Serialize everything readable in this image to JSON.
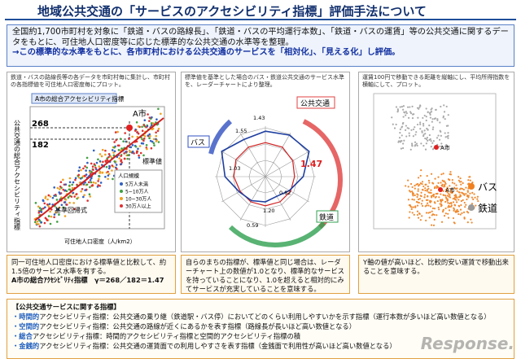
{
  "title": "地域公共交通の「サービスのアクセシビリティ指標」評価手法について",
  "intro": {
    "lines": [
      "全国約1,700市町村を対象に「鉄道・バスの路線長」、「鉄道・バスの平均運行本数」、「鉄道・バスの運賃」等の公共交通に関するデータをもとに、可住地人口密度等に応じた標準的な公共交通の水準等を整理。",
      "→この標準的な水準をもとに、各市町村における公共交通のサービスを「相対化」、「見える化」し評価。"
    ]
  },
  "panels": [
    {
      "caption": "鉄道・バスの路線長等の各データを市町村毎に集計し、市町村の各指標値を可住地人口密度毎にプロット。",
      "chart_title": "A市の総合アクセシビリティ指標",
      "y_label": "公共交通の総合アクセシビリティ指標",
      "x_label": "可住地人口密度（人/km2）",
      "value_a": "268",
      "value_std": "182",
      "city": "A市",
      "std": "標準値",
      "regression": "基準回帰式",
      "legend_title": "人口規模",
      "legend": [
        "5万人未満",
        "5~10万人",
        "10~30万人",
        "30万人以上"
      ]
    },
    {
      "caption": "標準値を基準とした場合のバス・鉄道公共交通のサービス水準を、レーダーチャートにより整理。",
      "public": "公共交通",
      "bus": "バス",
      "rail": "鉄道",
      "ratio": "1.47",
      "numbers": [
        "1.43",
        "1.55",
        "1.03",
        "0.82",
        "1.20",
        "0.59"
      ]
    },
    {
      "caption": "運賃100円で移動できる距離を縦軸にし、平均所得指数を横軸にして、プロット。",
      "city": "A市",
      "bus": "バス",
      "rail": "鉄道"
    }
  ],
  "notes": [
    {
      "lines": [
        "同一可住地人口密度における標準値と比較して、約1.5倍のサービス水準を有する。",
        "A市の総合ｱｸｾｼﾋﾞﾘﾃｨ指標　γ＝268／182＝1.47"
      ]
    },
    {
      "lines": [
        "自らのまちの指標が、標準値と同じ場合は、レーダーチャート上の数値が1.0となり、標準的なサービスを持っていることになり、1.0を超えると相対的にみてサービスが充実していることを意味する。"
      ]
    },
    {
      "lines": [
        "Y軸の値が高いほど、比較的安い運賃で移動出来ることを意味する。"
      ]
    }
  ],
  "definitions": {
    "heading": "【公共交通サービスに関する指標】",
    "items": [
      {
        "term": "・時間的",
        "rest": "アクセシビリティ指標：公共交通の乗り継（鉄道駅・バス停）においてどのくらい利用しやすいかを示す指標（運行本数が多いほど高い数値となる）"
      },
      {
        "term": "・空間的",
        "rest": "アクセシビリティ指標：公共交通の路線が近くにあるかを表す指標（路線長が長いほど高い数値となる）"
      },
      {
        "term": "・総合",
        "rest": "アクセシビリティ指標：時間的アクセシビリティ指標と空間的アクセシビリティ指標の積"
      },
      {
        "term": "・金銭的",
        "rest": "アクセシビリティ指標：公共交通の運賃面での利用しやすさを表す指標（金銭面で利用性が高いほど高い数値となる）"
      }
    ]
  },
  "watermark": "Response."
}
